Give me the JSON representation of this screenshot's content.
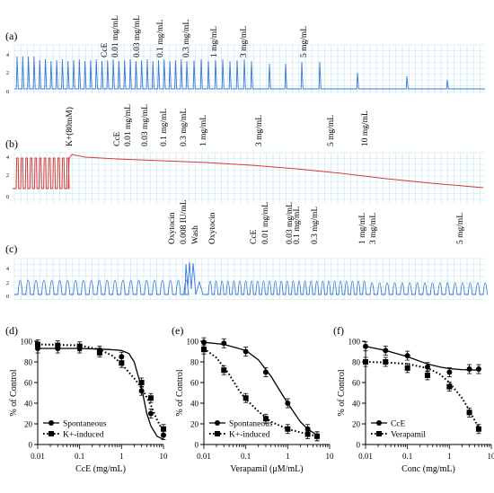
{
  "traces": [
    {
      "letter": "(a)",
      "color": "#3b78d8",
      "y_ticks": [
        "4",
        "2",
        "0"
      ],
      "labels": [
        "CcE",
        "0.01 mg/mL",
        "0.03 mg/mL",
        "0.1 mg/mL",
        "0.3 mg/mL",
        "1 mg/mL",
        "3 mg/mL",
        "5 mg/mL"
      ]
    },
    {
      "letter": "(b)",
      "color": "#d43a3a",
      "y_ticks": [
        "4",
        "2",
        "0"
      ],
      "labels": [
        "K+(80mM)",
        "CcE",
        "0.01 mg/mL",
        "0.03 mg/mL",
        "0.1 mg/mL",
        "0.3 mg/mL",
        "1 mg/mL",
        "3 mg/mL",
        "5 mg/mL",
        "10 mg/mL"
      ]
    },
    {
      "letter": "(c)",
      "color": "#3b78d8",
      "y_ticks": [
        "4",
        "2",
        "0"
      ],
      "labels": [
        "Oxytocin",
        "0.008 IU/mL",
        "Wash",
        "Oxytocin",
        "CcE",
        "0.01 mg/mL",
        "0.03 mg/mL",
        "0.1 mg/mL",
        "0.3 mg/mL",
        "1 mg/mL",
        "3 mg/mL",
        "5 mg/mL"
      ]
    }
  ],
  "chart_data": [
    {
      "panel": "(d)",
      "type": "line",
      "xlabel": "CcE (mg/mL)",
      "ylabel": "% of Control",
      "xscale": "log",
      "xlim": [
        0.01,
        10
      ],
      "ylim": [
        0,
        100
      ],
      "x_ticks": [
        "0.01",
        "0.1",
        "1",
        "10"
      ],
      "y_ticks": [
        "0",
        "20",
        "40",
        "60",
        "80",
        "100"
      ],
      "legend": "bottom-left",
      "series": [
        {
          "name": "Spontaneous",
          "marker": "circle",
          "line": "solid",
          "x": [
            0.01,
            0.03,
            0.1,
            0.3,
            1,
            3,
            5,
            10
          ],
          "y": [
            93,
            93,
            93,
            91,
            85,
            52,
            30,
            9
          ],
          "fit": [
            [
              0.01,
              93
            ],
            [
              0.1,
              93
            ],
            [
              0.5,
              92
            ],
            [
              1,
              91
            ],
            [
              1.5,
              88
            ],
            [
              2,
              80
            ],
            [
              3,
              55
            ],
            [
              4,
              30
            ],
            [
              5,
              18
            ],
            [
              7,
              8
            ],
            [
              10,
              5
            ]
          ]
        },
        {
          "name": "K+-induced",
          "marker": "square",
          "line": "dotted",
          "x": [
            0.01,
            0.03,
            0.1,
            0.3,
            1,
            3,
            5,
            10
          ],
          "y": [
            97,
            96,
            95,
            89,
            79,
            60,
            45,
            15
          ],
          "fit": [
            [
              0.01,
              97
            ],
            [
              0.1,
              96
            ],
            [
              0.3,
              92
            ],
            [
              0.6,
              86
            ],
            [
              1,
              78
            ],
            [
              2,
              64
            ],
            [
              3,
              55
            ],
            [
              5,
              38
            ],
            [
              7,
              24
            ],
            [
              10,
              12
            ]
          ]
        }
      ]
    },
    {
      "panel": "(e)",
      "type": "line",
      "xlabel": "Verapamil (μM/mL)",
      "ylabel": "% of Control",
      "xscale": "log",
      "xlim": [
        0.01,
        10
      ],
      "ylim": [
        0,
        100
      ],
      "x_ticks": [
        "0.01",
        "0.1",
        "1",
        "10"
      ],
      "y_ticks": [
        "0",
        "20",
        "40",
        "60",
        "80",
        "100"
      ],
      "legend": "bottom-left",
      "series": [
        {
          "name": "Spontaneous",
          "marker": "circle",
          "line": "solid",
          "x": [
            0.01,
            0.03,
            0.1,
            0.3,
            1,
            3,
            5
          ],
          "y": [
            99,
            98,
            90,
            70,
            40,
            15,
            8
          ],
          "fit": [
            [
              0.01,
              99
            ],
            [
              0.03,
              97
            ],
            [
              0.1,
              91
            ],
            [
              0.2,
              82
            ],
            [
              0.4,
              66
            ],
            [
              0.7,
              50
            ],
            [
              1,
              40
            ],
            [
              2,
              22
            ],
            [
              3,
              15
            ],
            [
              5,
              9
            ]
          ]
        },
        {
          "name": "K+-induced",
          "marker": "square",
          "line": "dotted",
          "x": [
            0.01,
            0.03,
            0.1,
            0.3,
            1,
            3,
            5
          ],
          "y": [
            92,
            72,
            45,
            25,
            15,
            10,
            8
          ],
          "fit": [
            [
              0.01,
              93
            ],
            [
              0.02,
              84
            ],
            [
              0.04,
              68
            ],
            [
              0.07,
              52
            ],
            [
              0.1,
              44
            ],
            [
              0.2,
              32
            ],
            [
              0.4,
              22
            ],
            [
              1,
              15
            ],
            [
              3,
              10
            ],
            [
              5,
              8
            ]
          ]
        }
      ]
    },
    {
      "panel": "(f)",
      "type": "line",
      "xlabel": "Conc (mg/mL)",
      "ylabel": "% of Control",
      "xscale": "log",
      "xlim": [
        0.01,
        10
      ],
      "ylim": [
        0,
        100
      ],
      "x_ticks": [
        "0.01",
        "0.1",
        "1",
        "10"
      ],
      "y_ticks": [
        "0",
        "20",
        "40",
        "60",
        "80",
        "100"
      ],
      "legend": "bottom-left",
      "series": [
        {
          "name": "CcE",
          "marker": "circle",
          "line": "solid",
          "x": [
            0.01,
            0.03,
            0.1,
            0.3,
            1,
            3,
            5
          ],
          "y": [
            95,
            91,
            86,
            75,
            70,
            73,
            73
          ],
          "fit": [
            [
              0.01,
              95
            ],
            [
              0.03,
              91
            ],
            [
              0.1,
              85
            ],
            [
              0.3,
              78
            ],
            [
              0.6,
              75
            ],
            [
              1,
              73.5
            ],
            [
              2,
              72.5
            ],
            [
              5,
              72
            ]
          ]
        },
        {
          "name": "Verapamil",
          "marker": "square",
          "line": "dotted",
          "x": [
            0.01,
            0.03,
            0.1,
            0.3,
            1,
            3,
            5
          ],
          "y": [
            80,
            80,
            74,
            67,
            56,
            31,
            15
          ],
          "fit": [
            [
              0.01,
              80
            ],
            [
              0.03,
              79.5
            ],
            [
              0.1,
              78
            ],
            [
              0.3,
              74
            ],
            [
              0.6,
              68
            ],
            [
              1,
              60
            ],
            [
              2,
              45
            ],
            [
              3,
              33
            ],
            [
              5,
              16
            ]
          ]
        }
      ]
    }
  ]
}
